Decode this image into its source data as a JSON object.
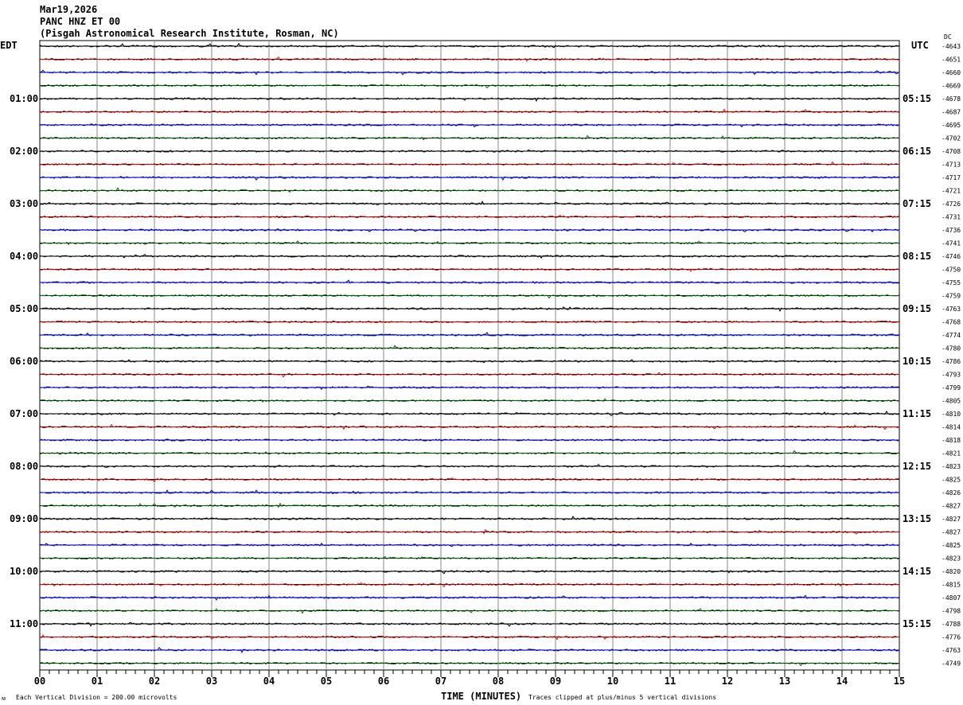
{
  "header": {
    "date": "Mar19,2026",
    "station": "PANC HNZ ET 00",
    "location": "(Pisgah Astronomical Research Institute, Rosman, NC)"
  },
  "left_axis_label": "EDT",
  "right_axis_label": "UTC",
  "dc_label": "DC",
  "footer": {
    "scale_note": "Each Vertical Division =  200.00 microvolts",
    "xlabel": "TIME (MINUTES)",
    "clip_note": "Traces clipped at plus/minus 5 vertical divisions"
  },
  "chart_data": {
    "type": "line",
    "subtype": "helicorder",
    "xlabel": "TIME (MINUTES)",
    "xlim": [
      0,
      15
    ],
    "x_ticks": [
      "00",
      "01",
      "02",
      "03",
      "04",
      "05",
      "06",
      "07",
      "08",
      "09",
      "10",
      "11",
      "12",
      "13",
      "14",
      "15"
    ],
    "trace_colors": [
      "#000000",
      "#ff0000",
      "#0000ff",
      "#007000"
    ],
    "edt_labels": [
      "01:00",
      "02:00",
      "03:00",
      "04:00",
      "05:00",
      "06:00",
      "07:00",
      "08:00",
      "09:00",
      "10:00",
      "11:00"
    ],
    "utc_labels": [
      "05:15",
      "06:15",
      "07:15",
      "08:15",
      "09:15",
      "10:15",
      "11:15",
      "12:15",
      "13:15",
      "14:15",
      "15:15"
    ],
    "dc_offsets": [
      "-4643",
      "-4651",
      "-4660",
      "-4669",
      "-4678",
      "-4687",
      "-4695",
      "-4702",
      "-4708",
      "-4713",
      "-4717",
      "-4721",
      "-4726",
      "-4731",
      "-4736",
      "-4741",
      "-4746",
      "-4750",
      "-4755",
      "-4759",
      "-4763",
      "-4768",
      "-4774",
      "-4780",
      "-4786",
      "-4793",
      "-4799",
      "-4805",
      "-4810",
      "-4814",
      "-4818",
      "-4821",
      "-4823",
      "-4825",
      "-4826",
      "-4827",
      "-4827",
      "-4827",
      "-4825",
      "-4823",
      "-4820",
      "-4815",
      "-4807",
      "-4798",
      "-4788",
      "-4776",
      "-4763",
      "-4749"
    ],
    "grid": true
  }
}
